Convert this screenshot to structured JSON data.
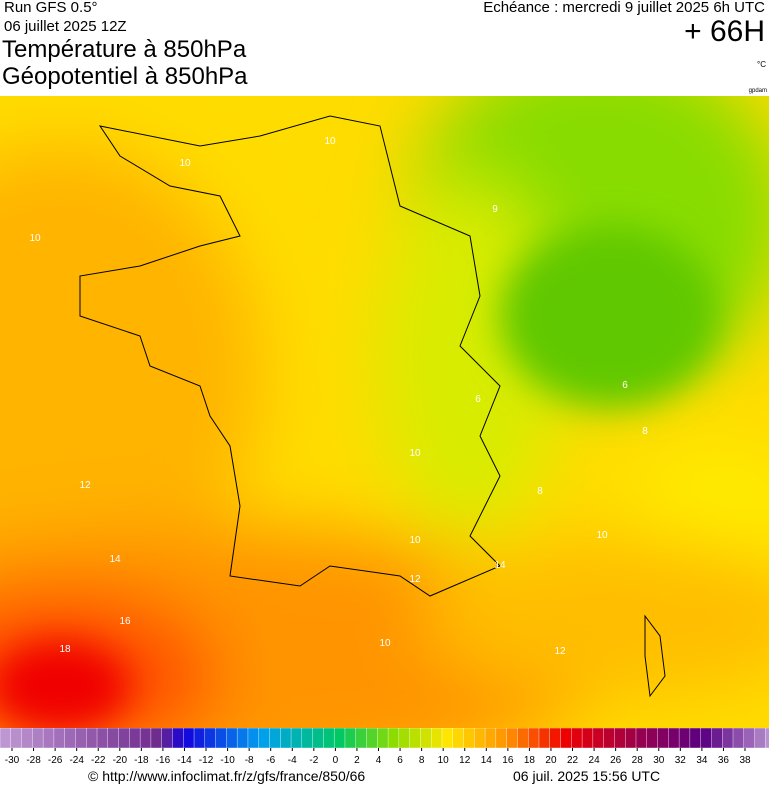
{
  "header": {
    "run": "Run GFS 0.5°",
    "run_date": "06 juillet 2025 12Z",
    "title_line1": "Température à 850hPa",
    "title_line2": "Géopotentiel à 850hPa",
    "forecast": "Echéance : mercredi 9 juillet 2025 6h UTC",
    "lead_time": "+ 66H",
    "unit": "°C",
    "contour_unit": "gpdam"
  },
  "map": {
    "contour_labels": [
      "10",
      "10",
      "10",
      "12",
      "14",
      "16",
      "18",
      "8",
      "6",
      "6",
      "8",
      "10",
      "10",
      "14",
      "12",
      "10",
      "10",
      "12",
      "9"
    ]
  },
  "colorbar": {
    "labels": [
      -30,
      -28,
      -26,
      -24,
      -22,
      -20,
      -18,
      -16,
      -14,
      -12,
      -10,
      -8,
      -6,
      -4,
      -2,
      0,
      2,
      4,
      6,
      8,
      10,
      12,
      14,
      16,
      18,
      20,
      22,
      24,
      26,
      28,
      30,
      32,
      34,
      36,
      38
    ]
  },
  "footer": {
    "url": "© http://www.infoclimat.fr/z/gfs/france/850/66",
    "timestamp": "06 juil. 2025 15:56 UTC"
  }
}
